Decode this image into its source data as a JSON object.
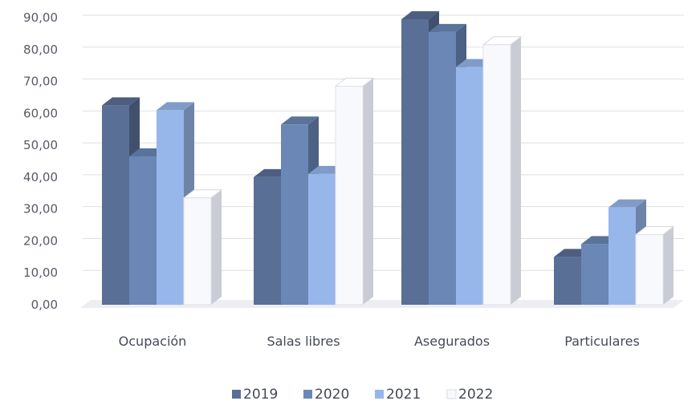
{
  "chart_data": {
    "type": "bar",
    "categories": [
      "Ocupación",
      "Salas libres",
      "Asegurados",
      "Particulares"
    ],
    "series": [
      {
        "name": "2019",
        "color": "#5a6f96",
        "values": [
          62.5,
          40.0,
          89.5,
          15.0
        ]
      },
      {
        "name": "2020",
        "color": "#6a87b6",
        "values": [
          46.5,
          56.5,
          85.5,
          19.0
        ]
      },
      {
        "name": "2021",
        "color": "#97b6ea",
        "values": [
          61.0,
          41.0,
          74.5,
          30.5
        ]
      },
      {
        "name": "2022",
        "color": "#f8f9fc",
        "values": [
          33.5,
          68.5,
          81.5,
          22.0
        ]
      }
    ],
    "y_ticks": [
      "0,00",
      "10,00",
      "20,00",
      "30,00",
      "40,00",
      "50,00",
      "60,00",
      "70,00",
      "80,00",
      "90,00"
    ],
    "ylim": [
      0,
      90
    ],
    "grid": true,
    "legend_position": "bottom",
    "title": "",
    "xlabel": "",
    "ylabel": ""
  }
}
